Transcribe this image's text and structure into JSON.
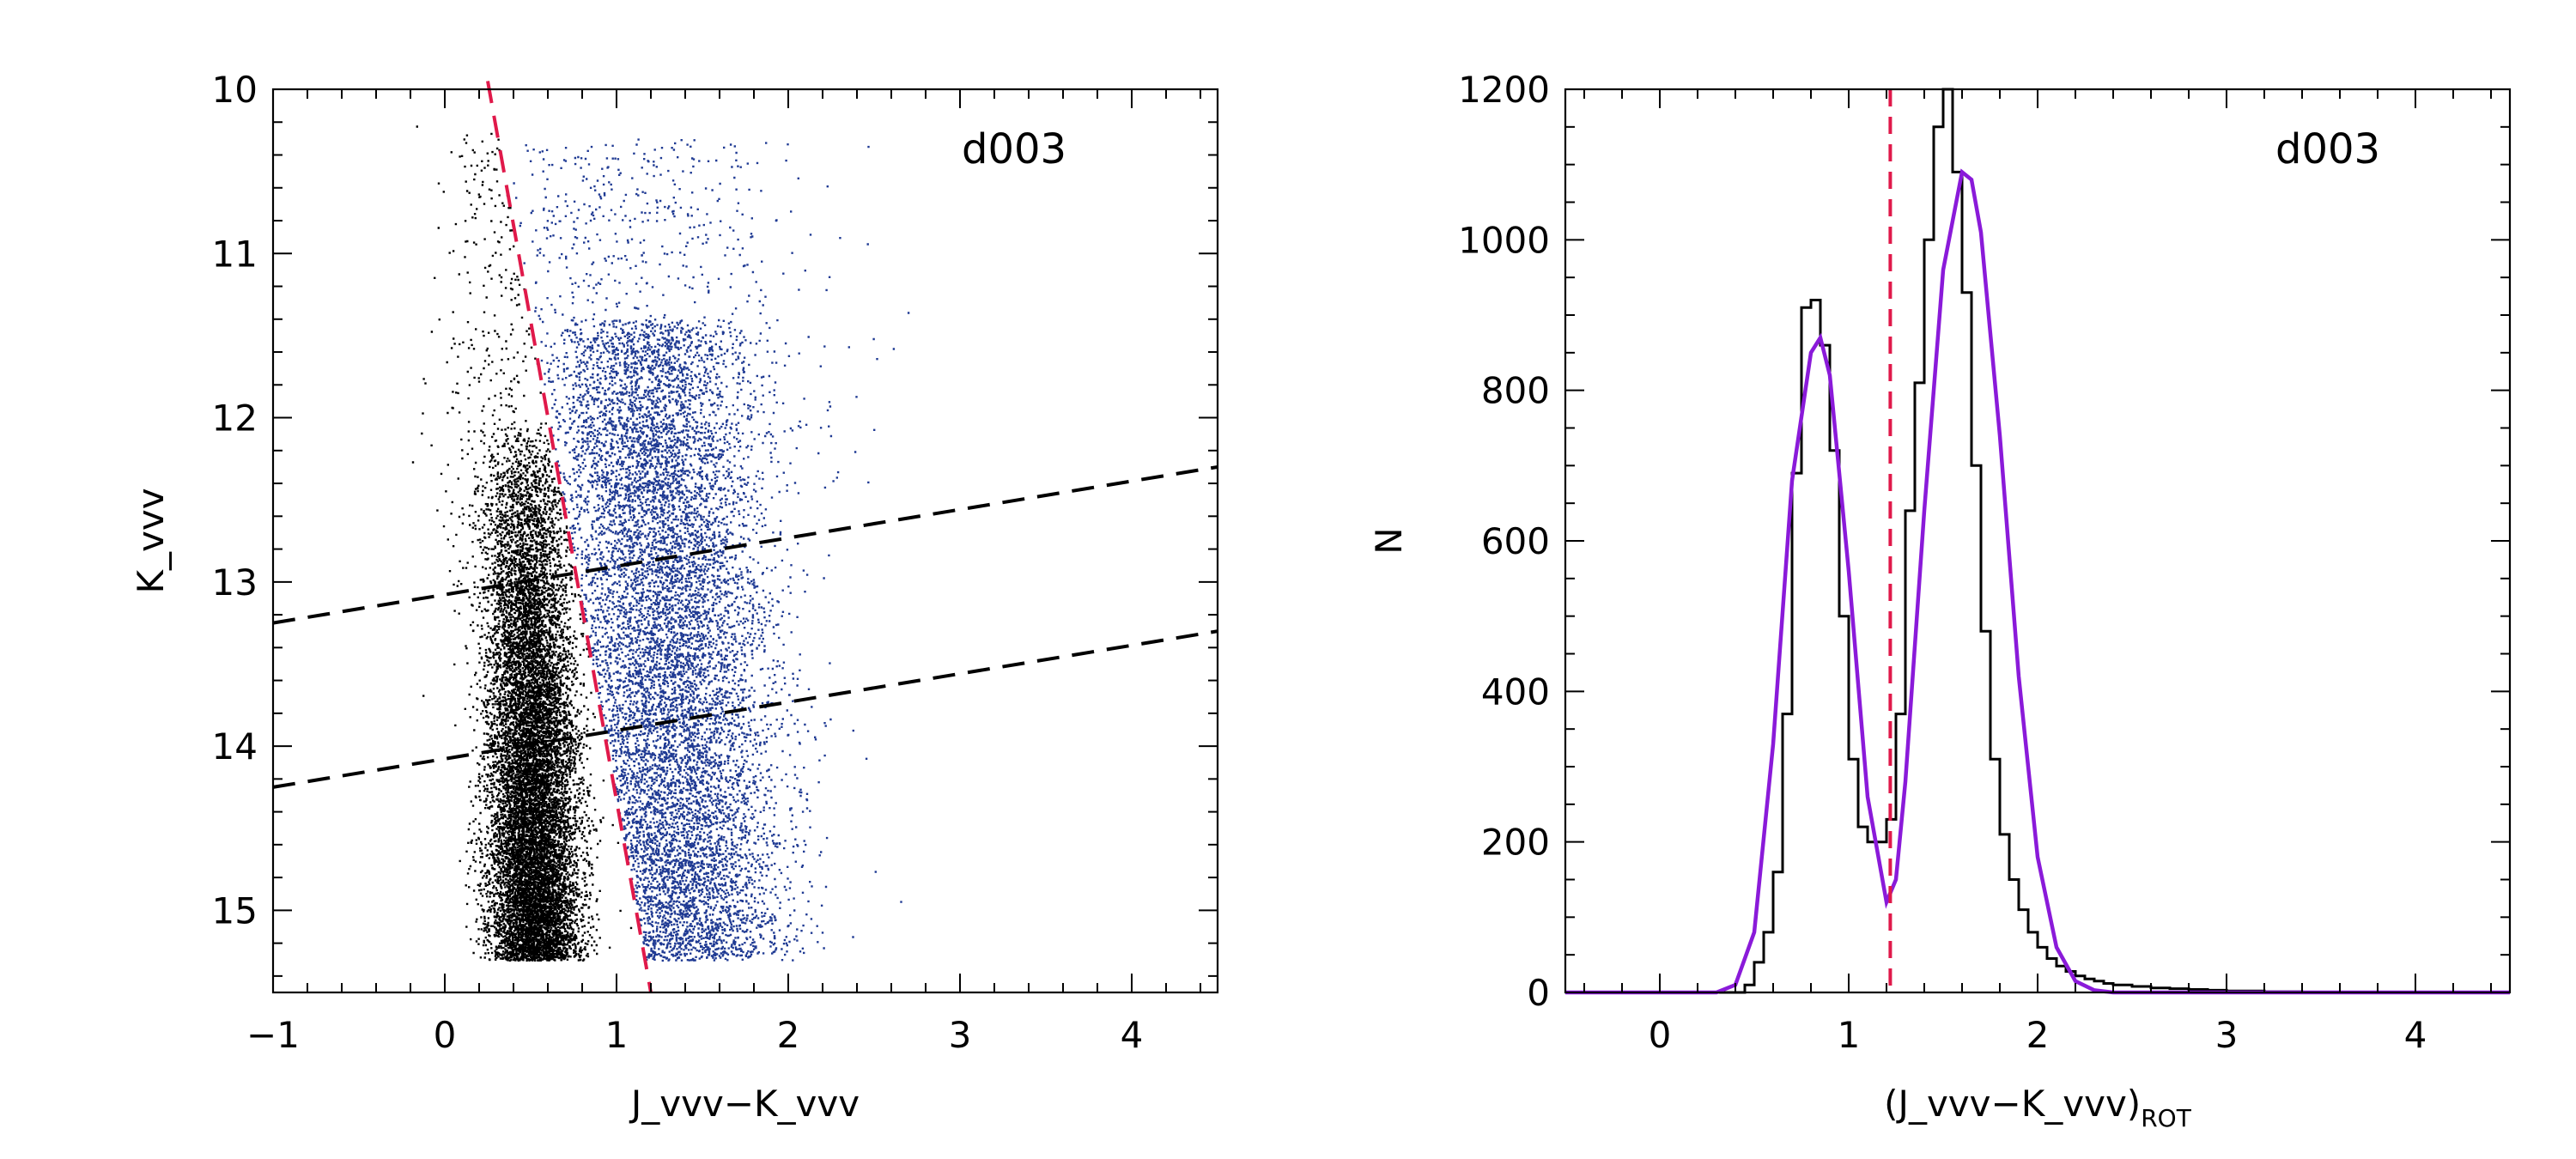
{
  "chart_data": [
    {
      "type": "scatter",
      "panel_label": "d003",
      "xlabel": "J_vvv−K_vvv",
      "ylabel": "K_vvv",
      "xlim": [
        -1,
        4.5
      ],
      "ylim": [
        15.5,
        10
      ],
      "y_inverted": true,
      "xticks": [
        -1,
        0,
        1,
        2,
        3,
        4
      ],
      "xtick_labels": [
        "−1",
        "0",
        "1",
        "2",
        "3",
        "4"
      ],
      "yticks": [
        10,
        11,
        12,
        13,
        14,
        15
      ],
      "ytick_labels": [
        "10",
        "11",
        "12",
        "13",
        "14",
        "15"
      ],
      "grid": false,
      "series": [
        {
          "color": "#000000",
          "population": "blue side of separator",
          "approx_center": [
            0.5,
            14.2
          ]
        },
        {
          "color": "#1f3a93",
          "population": "red side of separator",
          "approx_center": [
            1.3,
            13.3
          ]
        }
      ],
      "lines": [
        {
          "style": "dashed",
          "color": "#e0194a",
          "points": [
            [
              0.25,
              9.95
            ],
            [
              1.2,
              15.5
            ]
          ]
        },
        {
          "style": "dashed",
          "color": "#000000",
          "points": [
            [
              -1,
              13.25
            ],
            [
              4.5,
              12.3
            ]
          ]
        },
        {
          "style": "dashed",
          "color": "#000000",
          "points": [
            [
              -1,
              14.25
            ],
            [
              4.5,
              13.3
            ]
          ]
        }
      ]
    },
    {
      "type": "bar",
      "panel_label": "d003",
      "xlabel_main": "(J_vvv−K_vvv)",
      "xlabel_sub": "ROT",
      "ylabel": "N",
      "xlim": [
        -0.5,
        4.5
      ],
      "ylim": [
        0,
        1200
      ],
      "xticks": [
        0,
        1,
        2,
        3,
        4
      ],
      "xtick_labels": [
        "0",
        "1",
        "2",
        "3",
        "4"
      ],
      "yticks": [
        0,
        200,
        400,
        600,
        800,
        1000,
        1200
      ],
      "ytick_labels": [
        "0",
        "200",
        "400",
        "600",
        "800",
        "1000",
        "1200"
      ],
      "grid": false,
      "histogram": {
        "bin_width": 0.05,
        "x": [
          0.45,
          0.5,
          0.55,
          0.6,
          0.65,
          0.7,
          0.75,
          0.8,
          0.85,
          0.9,
          0.95,
          1.0,
          1.05,
          1.1,
          1.15,
          1.2,
          1.25,
          1.3,
          1.35,
          1.4,
          1.45,
          1.5,
          1.55,
          1.6,
          1.65,
          1.7,
          1.75,
          1.8,
          1.85,
          1.9,
          1.95,
          2.0,
          2.05,
          2.1,
          2.15,
          2.2,
          2.25,
          2.3,
          2.35,
          2.4,
          2.5,
          2.6,
          2.7,
          2.8,
          2.9,
          3.0,
          3.2,
          3.4
        ],
        "values": [
          10,
          40,
          80,
          160,
          370,
          690,
          910,
          920,
          860,
          720,
          500,
          310,
          220,
          200,
          200,
          230,
          370,
          640,
          810,
          1000,
          1150,
          1200,
          1090,
          930,
          700,
          480,
          310,
          210,
          150,
          110,
          80,
          60,
          45,
          35,
          28,
          22,
          18,
          15,
          12,
          10,
          8,
          6,
          5,
          4,
          3,
          2,
          1,
          0
        ]
      },
      "fit_curve": {
        "color": "#8a1ad9",
        "x": [
          -0.5,
          0.3,
          0.4,
          0.5,
          0.6,
          0.7,
          0.8,
          0.85,
          0.9,
          1.0,
          1.1,
          1.2,
          1.25,
          1.3,
          1.4,
          1.5,
          1.6,
          1.65,
          1.7,
          1.8,
          1.9,
          2.0,
          2.1,
          2.2,
          2.3,
          2.4,
          4.5
        ],
        "y": [
          0,
          0,
          10,
          80,
          330,
          680,
          850,
          870,
          820,
          560,
          260,
          120,
          150,
          280,
          640,
          960,
          1090,
          1080,
          1010,
          740,
          420,
          180,
          60,
          15,
          3,
          0,
          0
        ]
      },
      "lines": [
        {
          "style": "dashed",
          "color": "#e0194a",
          "x": 1.22
        }
      ]
    }
  ]
}
